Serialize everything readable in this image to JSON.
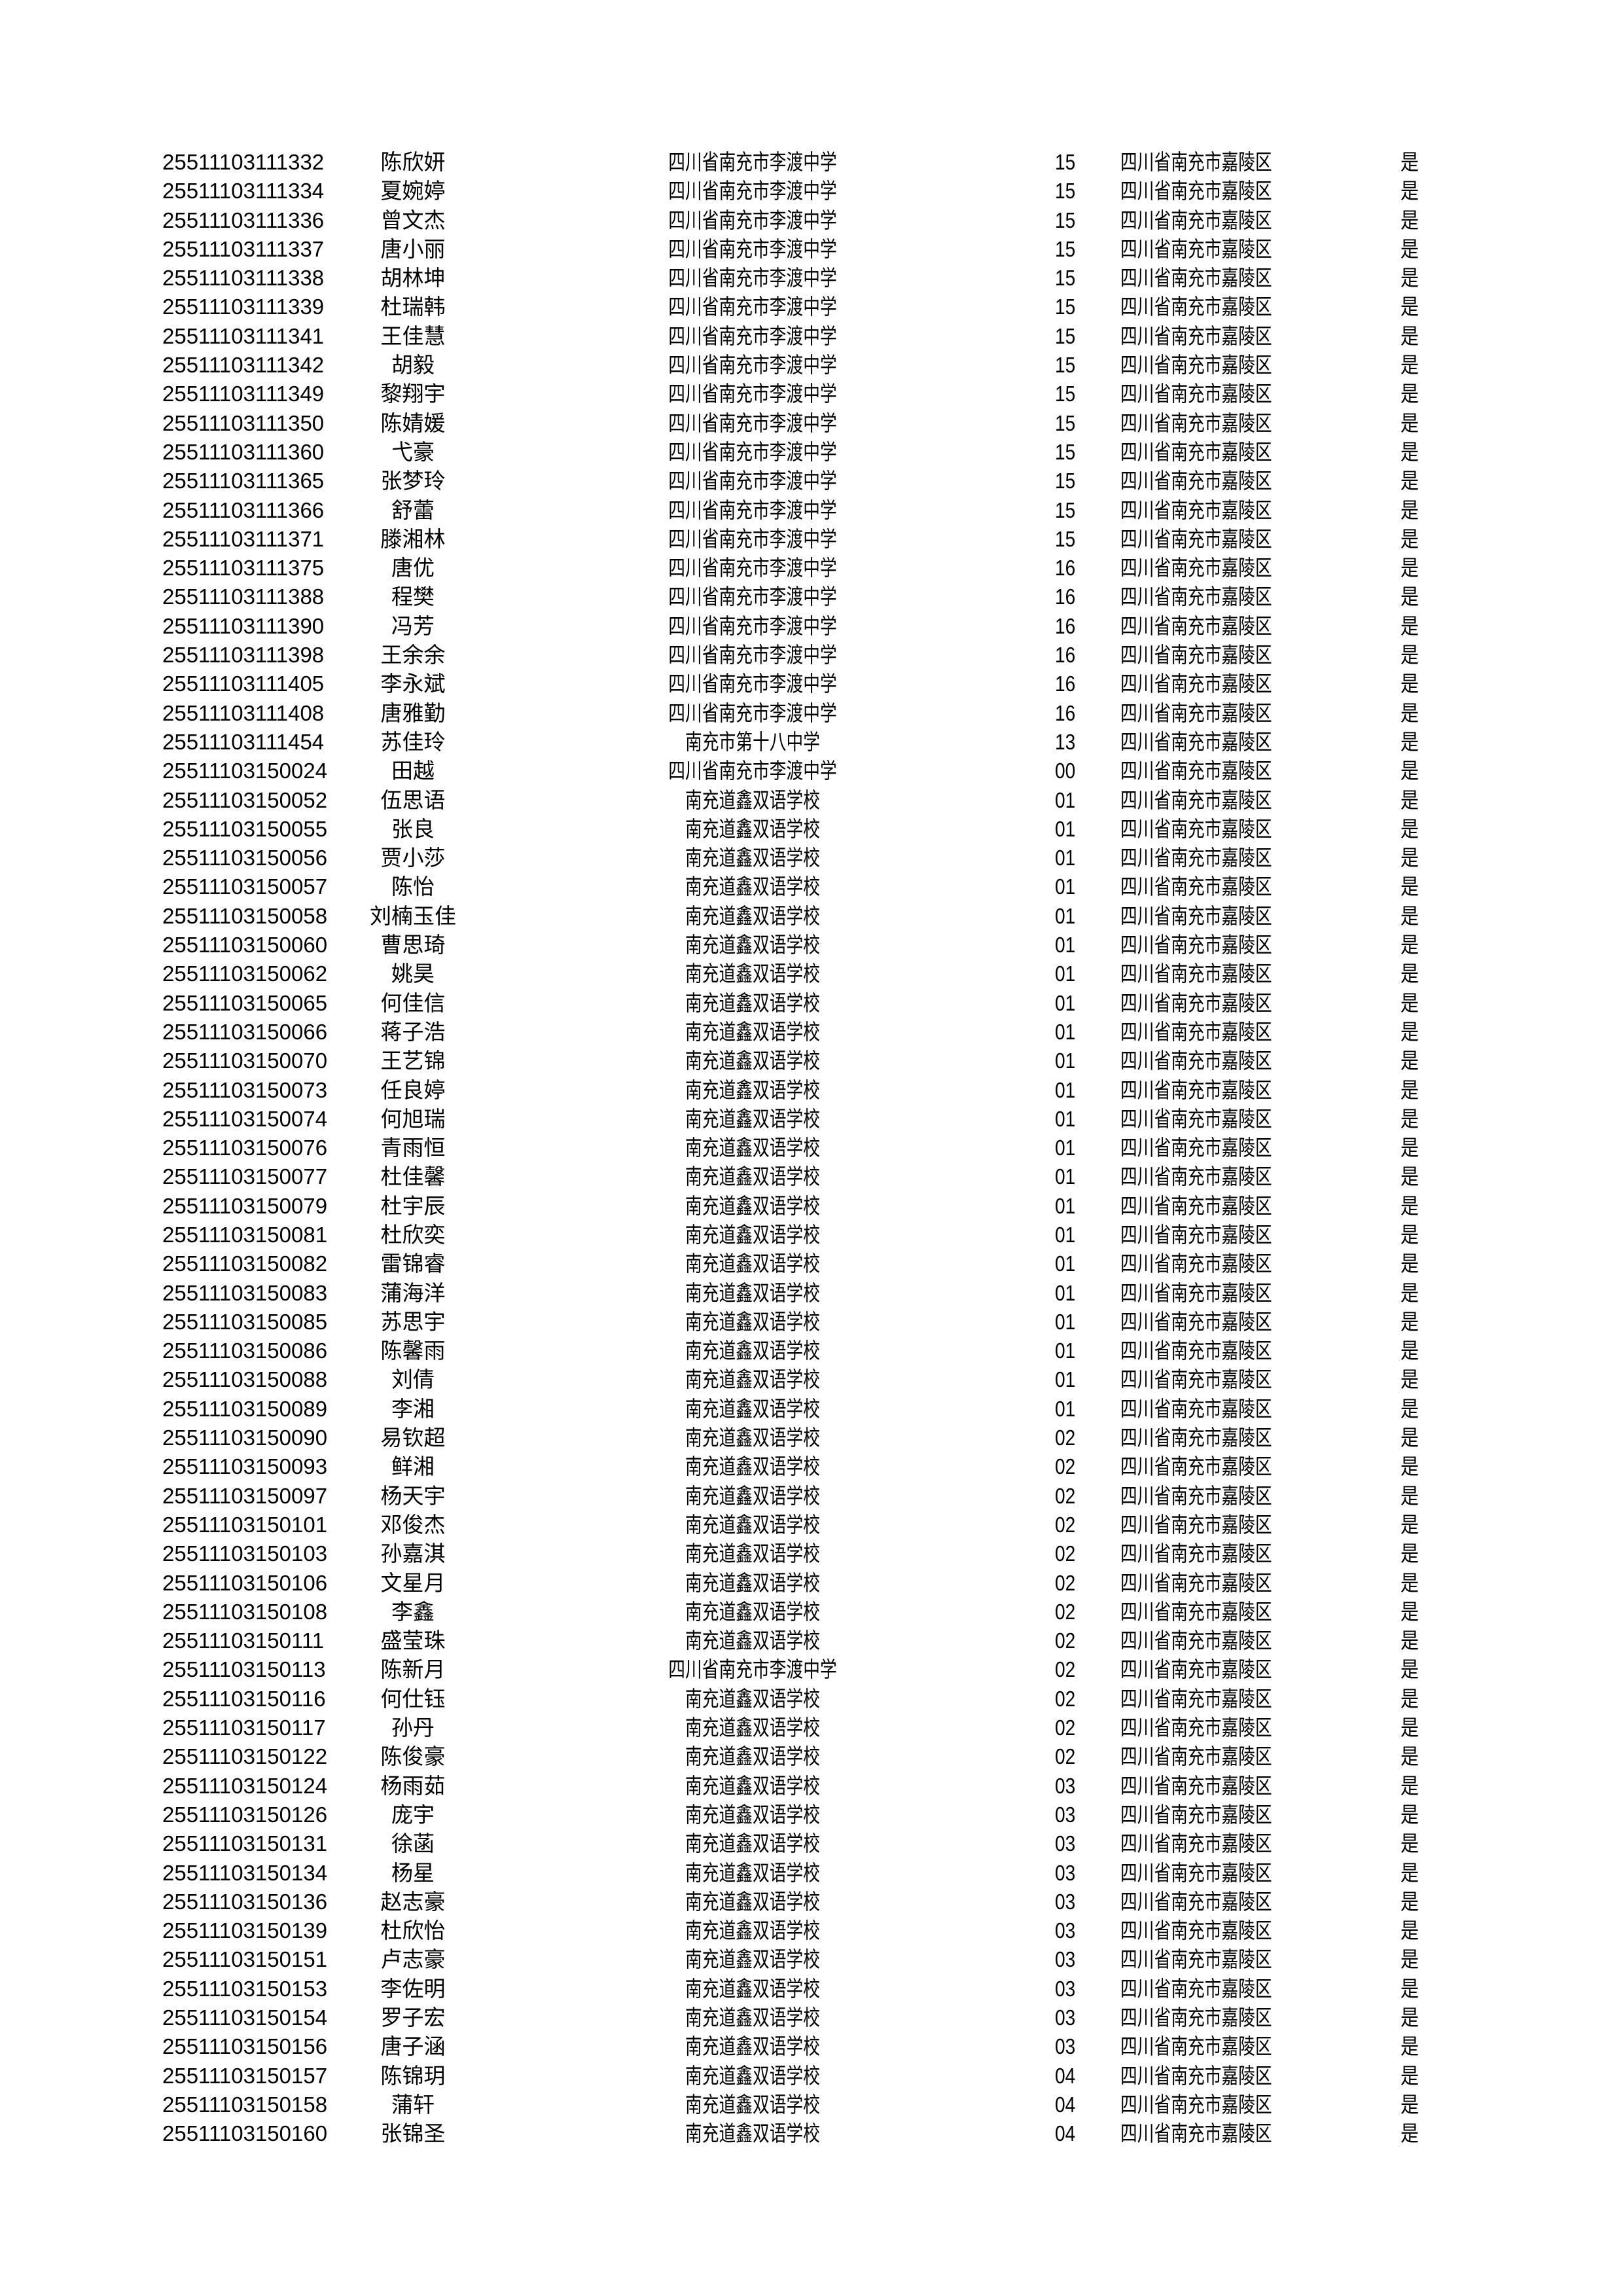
{
  "rows": [
    [
      "25511103111332",
      "陈欣妍",
      "四川省南充市李渡中学",
      "15",
      "四川省南充市嘉陵区",
      "是"
    ],
    [
      "25511103111334",
      "夏婉婷",
      "四川省南充市李渡中学",
      "15",
      "四川省南充市嘉陵区",
      "是"
    ],
    [
      "25511103111336",
      "曾文杰",
      "四川省南充市李渡中学",
      "15",
      "四川省南充市嘉陵区",
      "是"
    ],
    [
      "25511103111337",
      "唐小丽",
      "四川省南充市李渡中学",
      "15",
      "四川省南充市嘉陵区",
      "是"
    ],
    [
      "25511103111338",
      "胡林坤",
      "四川省南充市李渡中学",
      "15",
      "四川省南充市嘉陵区",
      "是"
    ],
    [
      "25511103111339",
      "杜瑞韩",
      "四川省南充市李渡中学",
      "15",
      "四川省南充市嘉陵区",
      "是"
    ],
    [
      "25511103111341",
      "王佳慧",
      "四川省南充市李渡中学",
      "15",
      "四川省南充市嘉陵区",
      "是"
    ],
    [
      "25511103111342",
      "胡毅",
      "四川省南充市李渡中学",
      "15",
      "四川省南充市嘉陵区",
      "是"
    ],
    [
      "25511103111349",
      "黎翔宇",
      "四川省南充市李渡中学",
      "15",
      "四川省南充市嘉陵区",
      "是"
    ],
    [
      "25511103111350",
      "陈婧媛",
      "四川省南充市李渡中学",
      "15",
      "四川省南充市嘉陵区",
      "是"
    ],
    [
      "25511103111360",
      "弋豪",
      "四川省南充市李渡中学",
      "15",
      "四川省南充市嘉陵区",
      "是"
    ],
    [
      "25511103111365",
      "张梦玲",
      "四川省南充市李渡中学",
      "15",
      "四川省南充市嘉陵区",
      "是"
    ],
    [
      "25511103111366",
      "舒蕾",
      "四川省南充市李渡中学",
      "15",
      "四川省南充市嘉陵区",
      "是"
    ],
    [
      "25511103111371",
      "滕湘林",
      "四川省南充市李渡中学",
      "15",
      "四川省南充市嘉陵区",
      "是"
    ],
    [
      "25511103111375",
      "唐优",
      "四川省南充市李渡中学",
      "16",
      "四川省南充市嘉陵区",
      "是"
    ],
    [
      "25511103111388",
      "程樊",
      "四川省南充市李渡中学",
      "16",
      "四川省南充市嘉陵区",
      "是"
    ],
    [
      "25511103111390",
      "冯芳",
      "四川省南充市李渡中学",
      "16",
      "四川省南充市嘉陵区",
      "是"
    ],
    [
      "25511103111398",
      "王余余",
      "四川省南充市李渡中学",
      "16",
      "四川省南充市嘉陵区",
      "是"
    ],
    [
      "25511103111405",
      "李永斌",
      "四川省南充市李渡中学",
      "16",
      "四川省南充市嘉陵区",
      "是"
    ],
    [
      "25511103111408",
      "唐雅勤",
      "四川省南充市李渡中学",
      "16",
      "四川省南充市嘉陵区",
      "是"
    ],
    [
      "25511103111454",
      "苏佳玲",
      "南充市第十八中学",
      "13",
      "四川省南充市嘉陵区",
      "是"
    ],
    [
      "25511103150024",
      "田越",
      "四川省南充市李渡中学",
      "00",
      "四川省南充市嘉陵区",
      "是"
    ],
    [
      "25511103150052",
      "伍思语",
      "南充道鑫双语学校",
      "01",
      "四川省南充市嘉陵区",
      "是"
    ],
    [
      "25511103150055",
      "张良",
      "南充道鑫双语学校",
      "01",
      "四川省南充市嘉陵区",
      "是"
    ],
    [
      "25511103150056",
      "贾小莎",
      "南充道鑫双语学校",
      "01",
      "四川省南充市嘉陵区",
      "是"
    ],
    [
      "25511103150057",
      "陈怡",
      "南充道鑫双语学校",
      "01",
      "四川省南充市嘉陵区",
      "是"
    ],
    [
      "25511103150058",
      "刘楠玉佳",
      "南充道鑫双语学校",
      "01",
      "四川省南充市嘉陵区",
      "是"
    ],
    [
      "25511103150060",
      "曹思琦",
      "南充道鑫双语学校",
      "01",
      "四川省南充市嘉陵区",
      "是"
    ],
    [
      "25511103150062",
      "姚昊",
      "南充道鑫双语学校",
      "01",
      "四川省南充市嘉陵区",
      "是"
    ],
    [
      "25511103150065",
      "何佳信",
      "南充道鑫双语学校",
      "01",
      "四川省南充市嘉陵区",
      "是"
    ],
    [
      "25511103150066",
      "蒋子浩",
      "南充道鑫双语学校",
      "01",
      "四川省南充市嘉陵区",
      "是"
    ],
    [
      "25511103150070",
      "王艺锦",
      "南充道鑫双语学校",
      "01",
      "四川省南充市嘉陵区",
      "是"
    ],
    [
      "25511103150073",
      "任良婷",
      "南充道鑫双语学校",
      "01",
      "四川省南充市嘉陵区",
      "是"
    ],
    [
      "25511103150074",
      "何旭瑞",
      "南充道鑫双语学校",
      "01",
      "四川省南充市嘉陵区",
      "是"
    ],
    [
      "25511103150076",
      "青雨恒",
      "南充道鑫双语学校",
      "01",
      "四川省南充市嘉陵区",
      "是"
    ],
    [
      "25511103150077",
      "杜佳馨",
      "南充道鑫双语学校",
      "01",
      "四川省南充市嘉陵区",
      "是"
    ],
    [
      "25511103150079",
      "杜宇辰",
      "南充道鑫双语学校",
      "01",
      "四川省南充市嘉陵区",
      "是"
    ],
    [
      "25511103150081",
      "杜欣奕",
      "南充道鑫双语学校",
      "01",
      "四川省南充市嘉陵区",
      "是"
    ],
    [
      "25511103150082",
      "雷锦睿",
      "南充道鑫双语学校",
      "01",
      "四川省南充市嘉陵区",
      "是"
    ],
    [
      "25511103150083",
      "蒲海洋",
      "南充道鑫双语学校",
      "01",
      "四川省南充市嘉陵区",
      "是"
    ],
    [
      "25511103150085",
      "苏思宇",
      "南充道鑫双语学校",
      "01",
      "四川省南充市嘉陵区",
      "是"
    ],
    [
      "25511103150086",
      "陈馨雨",
      "南充道鑫双语学校",
      "01",
      "四川省南充市嘉陵区",
      "是"
    ],
    [
      "25511103150088",
      "刘倩",
      "南充道鑫双语学校",
      "01",
      "四川省南充市嘉陵区",
      "是"
    ],
    [
      "25511103150089",
      "李湘",
      "南充道鑫双语学校",
      "01",
      "四川省南充市嘉陵区",
      "是"
    ],
    [
      "25511103150090",
      "易钦超",
      "南充道鑫双语学校",
      "02",
      "四川省南充市嘉陵区",
      "是"
    ],
    [
      "25511103150093",
      "鲜湘",
      "南充道鑫双语学校",
      "02",
      "四川省南充市嘉陵区",
      "是"
    ],
    [
      "25511103150097",
      "杨天宇",
      "南充道鑫双语学校",
      "02",
      "四川省南充市嘉陵区",
      "是"
    ],
    [
      "25511103150101",
      "邓俊杰",
      "南充道鑫双语学校",
      "02",
      "四川省南充市嘉陵区",
      "是"
    ],
    [
      "25511103150103",
      "孙嘉淇",
      "南充道鑫双语学校",
      "02",
      "四川省南充市嘉陵区",
      "是"
    ],
    [
      "25511103150106",
      "文星月",
      "南充道鑫双语学校",
      "02",
      "四川省南充市嘉陵区",
      "是"
    ],
    [
      "25511103150108",
      "李鑫",
      "南充道鑫双语学校",
      "02",
      "四川省南充市嘉陵区",
      "是"
    ],
    [
      "25511103150111",
      "盛莹珠",
      "南充道鑫双语学校",
      "02",
      "四川省南充市嘉陵区",
      "是"
    ],
    [
      "25511103150113",
      "陈新月",
      "四川省南充市李渡中学",
      "02",
      "四川省南充市嘉陵区",
      "是"
    ],
    [
      "25511103150116",
      "何仕钰",
      "南充道鑫双语学校",
      "02",
      "四川省南充市嘉陵区",
      "是"
    ],
    [
      "25511103150117",
      "孙丹",
      "南充道鑫双语学校",
      "02",
      "四川省南充市嘉陵区",
      "是"
    ],
    [
      "25511103150122",
      "陈俊豪",
      "南充道鑫双语学校",
      "02",
      "四川省南充市嘉陵区",
      "是"
    ],
    [
      "25511103150124",
      "杨雨茹",
      "南充道鑫双语学校",
      "03",
      "四川省南充市嘉陵区",
      "是"
    ],
    [
      "25511103150126",
      "庞宇",
      "南充道鑫双语学校",
      "03",
      "四川省南充市嘉陵区",
      "是"
    ],
    [
      "25511103150131",
      "徐菡",
      "南充道鑫双语学校",
      "03",
      "四川省南充市嘉陵区",
      "是"
    ],
    [
      "25511103150134",
      "杨星",
      "南充道鑫双语学校",
      "03",
      "四川省南充市嘉陵区",
      "是"
    ],
    [
      "25511103150136",
      "赵志豪",
      "南充道鑫双语学校",
      "03",
      "四川省南充市嘉陵区",
      "是"
    ],
    [
      "25511103150139",
      "杜欣怡",
      "南充道鑫双语学校",
      "03",
      "四川省南充市嘉陵区",
      "是"
    ],
    [
      "25511103150151",
      "卢志豪",
      "南充道鑫双语学校",
      "03",
      "四川省南充市嘉陵区",
      "是"
    ],
    [
      "25511103150153",
      "李佐明",
      "南充道鑫双语学校",
      "03",
      "四川省南充市嘉陵区",
      "是"
    ],
    [
      "25511103150154",
      "罗子宏",
      "南充道鑫双语学校",
      "03",
      "四川省南充市嘉陵区",
      "是"
    ],
    [
      "25511103150156",
      "唐子涵",
      "南充道鑫双语学校",
      "03",
      "四川省南充市嘉陵区",
      "是"
    ],
    [
      "25511103150157",
      "陈锦玥",
      "南充道鑫双语学校",
      "04",
      "四川省南充市嘉陵区",
      "是"
    ],
    [
      "25511103150158",
      "蒲轩",
      "南充道鑫双语学校",
      "04",
      "四川省南充市嘉陵区",
      "是"
    ],
    [
      "25511103150160",
      "张锦圣",
      "南充道鑫双语学校",
      "04",
      "四川省南充市嘉陵区",
      "是"
    ]
  ]
}
